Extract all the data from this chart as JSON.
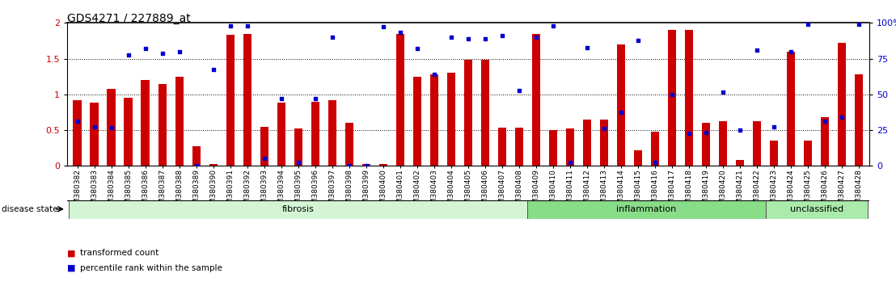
{
  "title": "GDS4271 / 227889_at",
  "samples": [
    "GSM380382",
    "GSM380383",
    "GSM380384",
    "GSM380385",
    "GSM380386",
    "GSM380387",
    "GSM380388",
    "GSM380389",
    "GSM380390",
    "GSM380391",
    "GSM380392",
    "GSM380393",
    "GSM380394",
    "GSM380395",
    "GSM380396",
    "GSM380397",
    "GSM380398",
    "GSM380399",
    "GSM380400",
    "GSM380401",
    "GSM380402",
    "GSM380403",
    "GSM380404",
    "GSM380405",
    "GSM380406",
    "GSM380407",
    "GSM380408",
    "GSM380409",
    "GSM380410",
    "GSM380411",
    "GSM380412",
    "GSM380413",
    "GSM380414",
    "GSM380415",
    "GSM380416",
    "GSM380417",
    "GSM380418",
    "GSM380419",
    "GSM380420",
    "GSM380421",
    "GSM380422",
    "GSM380423",
    "GSM380424",
    "GSM380425",
    "GSM380426",
    "GSM380427",
    "GSM380428"
  ],
  "bar_values": [
    0.92,
    0.88,
    1.08,
    0.95,
    1.2,
    1.15,
    1.25,
    0.28,
    0.03,
    1.83,
    1.85,
    0.55,
    0.88,
    0.52,
    0.9,
    0.92,
    0.6,
    0.03,
    0.03,
    1.85,
    1.25,
    1.28,
    1.3,
    1.48,
    1.48,
    0.54,
    0.54,
    1.85,
    0.5,
    0.52,
    0.65,
    0.65,
    1.7,
    0.22,
    0.48,
    1.9,
    1.9,
    0.6,
    0.63,
    0.08,
    0.63,
    0.35,
    1.6,
    0.35,
    0.68,
    1.72,
    1.28
  ],
  "dot_values": [
    0.62,
    0.55,
    0.54,
    1.55,
    1.64,
    1.57,
    1.6,
    0.0,
    1.35,
    1.96,
    1.96,
    0.1,
    0.94,
    0.05,
    0.94,
    1.8,
    0.0,
    0.0,
    1.95,
    1.87,
    1.64,
    1.28,
    1.8,
    1.78,
    1.78,
    1.82,
    1.05,
    1.8,
    1.96,
    0.05,
    1.65,
    0.52,
    0.75,
    1.75,
    0.05,
    1.0,
    0.45,
    0.47,
    1.03,
    0.5,
    1.62,
    0.55,
    1.6,
    1.98,
    0.62,
    0.68,
    1.98
  ],
  "disease_groups": [
    {
      "label": "fibrosis",
      "start": 0,
      "end": 27,
      "color": "#d4f5d4"
    },
    {
      "label": "inflammation",
      "start": 27,
      "end": 41,
      "color": "#88dd88"
    },
    {
      "label": "unclassified",
      "start": 41,
      "end": 47,
      "color": "#aaeaaa"
    }
  ],
  "bar_color": "#cc0000",
  "dot_color": "#0000cc",
  "ylim": [
    0,
    2.0
  ],
  "yticks_left": [
    0,
    0.5,
    1.0,
    1.5,
    2.0
  ],
  "yticks_right": [
    0,
    25,
    50,
    75,
    100
  ],
  "hlines": [
    0.5,
    1.0,
    1.5
  ],
  "plot_bg": "#ffffff",
  "fig_bg": "#ffffff",
  "title_fontsize": 10,
  "tick_fontsize": 6.5,
  "bar_width": 0.5
}
